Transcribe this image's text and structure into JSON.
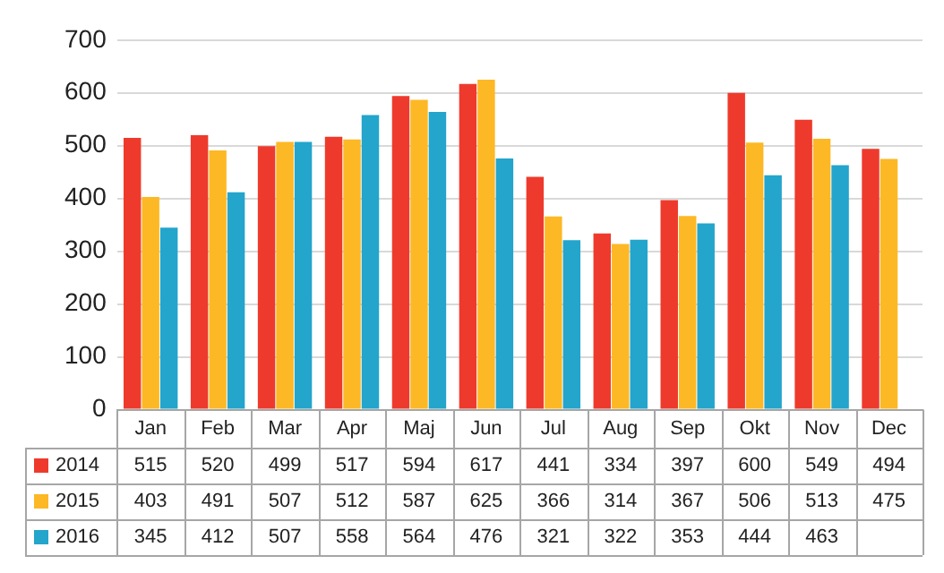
{
  "chart_data": {
    "type": "bar",
    "categories": [
      "Jan",
      "Feb",
      "Mar",
      "Apr",
      "Maj",
      "Jun",
      "Jul",
      "Aug",
      "Sep",
      "Okt",
      "Nov",
      "Dec"
    ],
    "series": [
      {
        "name": "2014",
        "color": "#ee3a2c",
        "values": [
          515,
          520,
          499,
          517,
          594,
          617,
          441,
          334,
          397,
          600,
          549,
          494
        ]
      },
      {
        "name": "2015",
        "color": "#fdb825",
        "values": [
          403,
          491,
          507,
          512,
          587,
          625,
          366,
          314,
          367,
          506,
          513,
          475
        ]
      },
      {
        "name": "2016",
        "color": "#23a5cc",
        "values": [
          345,
          412,
          507,
          558,
          564,
          476,
          321,
          322,
          353,
          444,
          463,
          null
        ]
      }
    ],
    "ylim": [
      0,
      700
    ],
    "yticks": [
      0,
      100,
      200,
      300,
      400,
      500,
      600,
      700
    ],
    "grid": "y",
    "legend": "bottom",
    "data_labels": true
  }
}
